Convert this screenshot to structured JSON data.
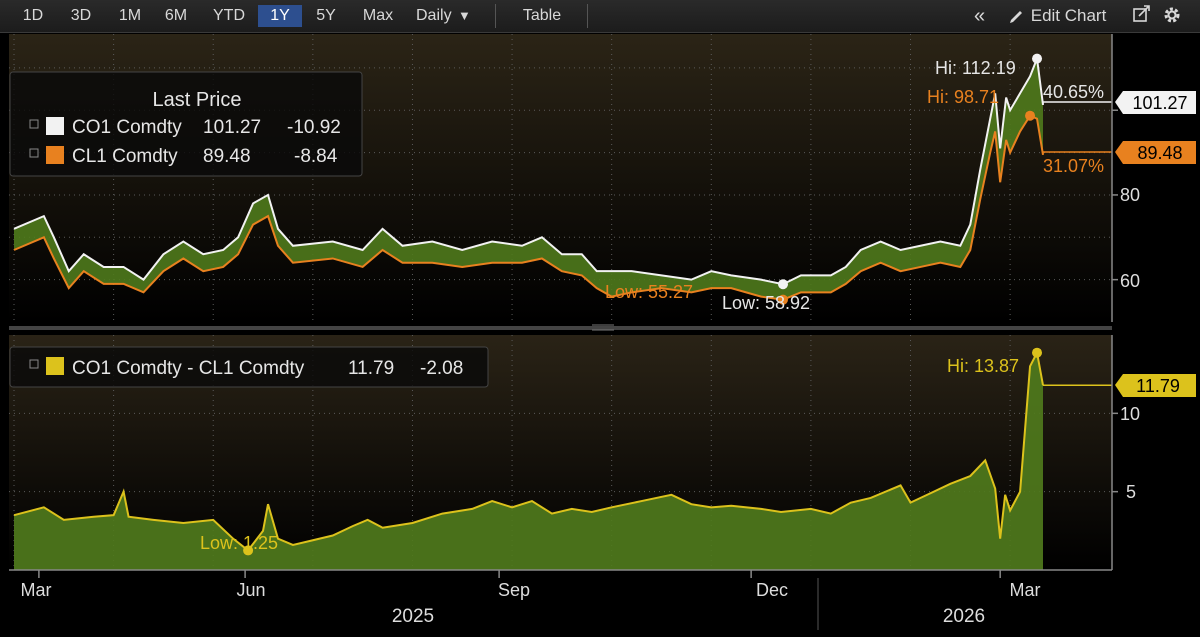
{
  "toolbar": {
    "ranges": [
      "1D",
      "3D",
      "1M",
      "6M",
      "YTD",
      "1Y",
      "5Y",
      "Max"
    ],
    "active_range": "1Y",
    "frequency": "Daily",
    "frequency_arrow": "▼",
    "table_label": "Table",
    "collapse_icon": "«",
    "edit_chart_label": "Edit Chart",
    "pencil_icon": "pencil-icon",
    "export_icon": "export-icon",
    "settings_icon": "gear-icon"
  },
  "colors": {
    "co1": "#f2f2f2",
    "cl1": "#e8811f",
    "spread": "#dcc21c",
    "fill": "#4f7a1c",
    "background": "#000000"
  },
  "chart_data": [
    {
      "type": "line",
      "title": "Last Price",
      "series": [
        {
          "name": "CO1 Comdty",
          "last": "101.27",
          "change": "-10.92",
          "hi_label": "Hi: 112.19",
          "pct_label": "40.65%",
          "values": [
            [
              0,
              72
            ],
            [
              0.03,
              75
            ],
            [
              0.04,
              70
            ],
            [
              0.055,
              62
            ],
            [
              0.07,
              66
            ],
            [
              0.09,
              63
            ],
            [
              0.11,
              63
            ],
            [
              0.13,
              60
            ],
            [
              0.15,
              66
            ],
            [
              0.17,
              69
            ],
            [
              0.19,
              66
            ],
            [
              0.21,
              67
            ],
            [
              0.225,
              70
            ],
            [
              0.24,
              78
            ],
            [
              0.255,
              80
            ],
            [
              0.265,
              72
            ],
            [
              0.28,
              68
            ],
            [
              0.32,
              69
            ],
            [
              0.35,
              67
            ],
            [
              0.37,
              72
            ],
            [
              0.39,
              68
            ],
            [
              0.42,
              69
            ],
            [
              0.45,
              67
            ],
            [
              0.48,
              69
            ],
            [
              0.51,
              68
            ],
            [
              0.53,
              70
            ],
            [
              0.55,
              66
            ],
            [
              0.57,
              66
            ],
            [
              0.585,
              62
            ],
            [
              0.62,
              62
            ],
            [
              0.65,
              61
            ],
            [
              0.68,
              60
            ],
            [
              0.7,
              62
            ],
            [
              0.72,
              61
            ],
            [
              0.75,
              60
            ],
            [
              0.772,
              58.92
            ],
            [
              0.79,
              61
            ],
            [
              0.82,
              61
            ],
            [
              0.835,
              63
            ],
            [
              0.85,
              67
            ],
            [
              0.87,
              69
            ],
            [
              0.89,
              67
            ],
            [
              0.91,
              68
            ],
            [
              0.93,
              69
            ],
            [
              0.95,
              68
            ],
            [
              0.96,
              73
            ],
            [
              0.97,
              86
            ],
            [
              0.98,
              98
            ],
            [
              0.985,
              104
            ],
            [
              0.99,
              91
            ],
            [
              0.996,
              103
            ],
            [
              1.0,
              100
            ],
            [
              1.01,
              104
            ],
            [
              1.02,
              108
            ],
            [
              1.027,
              112.19
            ],
            [
              1.033,
              101.27
            ]
          ]
        },
        {
          "name": "CL1 Comdty",
          "last": "89.48",
          "change": "-8.84",
          "hi_label": "Hi: 98.71",
          "pct_label": "31.07%",
          "values": [
            [
              0,
              67
            ],
            [
              0.03,
              70
            ],
            [
              0.04,
              65
            ],
            [
              0.055,
              58
            ],
            [
              0.07,
              62
            ],
            [
              0.09,
              59
            ],
            [
              0.11,
              59
            ],
            [
              0.13,
              57
            ],
            [
              0.15,
              62
            ],
            [
              0.17,
              65
            ],
            [
              0.19,
              62
            ],
            [
              0.21,
              63
            ],
            [
              0.225,
              66
            ],
            [
              0.24,
              73
            ],
            [
              0.255,
              75
            ],
            [
              0.265,
              68
            ],
            [
              0.28,
              64
            ],
            [
              0.32,
              65
            ],
            [
              0.35,
              63
            ],
            [
              0.37,
              67
            ],
            [
              0.39,
              64
            ],
            [
              0.42,
              64
            ],
            [
              0.45,
              63
            ],
            [
              0.48,
              64
            ],
            [
              0.51,
              64
            ],
            [
              0.53,
              65
            ],
            [
              0.55,
              62
            ],
            [
              0.57,
              61
            ],
            [
              0.585,
              58
            ],
            [
              0.6,
              56
            ],
            [
              0.62,
              57
            ],
            [
              0.65,
              58
            ],
            [
              0.68,
              57
            ],
            [
              0.7,
              58
            ],
            [
              0.72,
              58
            ],
            [
              0.75,
              56
            ],
            [
              0.772,
              55.27
            ],
            [
              0.79,
              57
            ],
            [
              0.82,
              57
            ],
            [
              0.835,
              59
            ],
            [
              0.85,
              62
            ],
            [
              0.87,
              64
            ],
            [
              0.89,
              62
            ],
            [
              0.91,
              63
            ],
            [
              0.93,
              64
            ],
            [
              0.95,
              63
            ],
            [
              0.96,
              67
            ],
            [
              0.97,
              79
            ],
            [
              0.98,
              90
            ],
            [
              0.985,
              95
            ],
            [
              0.99,
              83
            ],
            [
              0.996,
              93
            ],
            [
              1.0,
              90
            ],
            [
              1.01,
              95
            ],
            [
              1.02,
              98.71
            ],
            [
              1.027,
              98
            ],
            [
              1.033,
              89.48
            ]
          ]
        }
      ],
      "annotations": {
        "co1_low": "Low: 58.92",
        "cl1_low": "Low: 55.27"
      },
      "y_ticks": [
        "60",
        "80"
      ],
      "ylim": [
        50,
        118
      ]
    },
    {
      "type": "area",
      "series": [
        {
          "name": "CO1 Comdty - CL1 Comdty",
          "last": "11.79",
          "change": "-2.08",
          "hi_label": "Hi: 13.87",
          "low_label": "Low: 1.25",
          "values": [
            [
              0,
              3.5
            ],
            [
              0.03,
              4.0
            ],
            [
              0.05,
              3.2
            ],
            [
              0.08,
              3.4
            ],
            [
              0.1,
              3.5
            ],
            [
              0.11,
              5.0
            ],
            [
              0.115,
              3.4
            ],
            [
              0.14,
              3.2
            ],
            [
              0.17,
              3.0
            ],
            [
              0.2,
              3.2
            ],
            [
              0.22,
              2.0
            ],
            [
              0.235,
              1.25
            ],
            [
              0.25,
              2.5
            ],
            [
              0.255,
              4.2
            ],
            [
              0.265,
              2.0
            ],
            [
              0.28,
              1.6
            ],
            [
              0.3,
              1.9
            ],
            [
              0.32,
              2.2
            ],
            [
              0.34,
              2.8
            ],
            [
              0.355,
              3.2
            ],
            [
              0.37,
              2.7
            ],
            [
              0.4,
              3.0
            ],
            [
              0.43,
              3.6
            ],
            [
              0.46,
              3.9
            ],
            [
              0.48,
              4.4
            ],
            [
              0.5,
              4.0
            ],
            [
              0.52,
              4.4
            ],
            [
              0.54,
              3.6
            ],
            [
              0.56,
              3.9
            ],
            [
              0.58,
              3.7
            ],
            [
              0.6,
              4.0
            ],
            [
              0.63,
              4.4
            ],
            [
              0.66,
              4.8
            ],
            [
              0.68,
              4.2
            ],
            [
              0.7,
              4.0
            ],
            [
              0.72,
              4.1
            ],
            [
              0.75,
              3.9
            ],
            [
              0.77,
              3.7
            ],
            [
              0.8,
              3.9
            ],
            [
              0.82,
              3.6
            ],
            [
              0.84,
              4.3
            ],
            [
              0.86,
              4.6
            ],
            [
              0.89,
              5.4
            ],
            [
              0.9,
              4.3
            ],
            [
              0.92,
              4.9
            ],
            [
              0.94,
              5.5
            ],
            [
              0.96,
              6.0
            ],
            [
              0.975,
              7.0
            ],
            [
              0.985,
              5.2
            ],
            [
              0.99,
              2.0
            ],
            [
              0.995,
              4.8
            ],
            [
              1.0,
              3.8
            ],
            [
              1.01,
              5.0
            ],
            [
              1.015,
              9.0
            ],
            [
              1.02,
              13.0
            ],
            [
              1.027,
              13.87
            ],
            [
              1.033,
              11.79
            ]
          ]
        }
      ],
      "y_ticks": [
        "5",
        "10"
      ],
      "ylim": [
        0,
        15
      ]
    }
  ],
  "x_axis": {
    "months": [
      "Mar",
      "Jun",
      "Sep",
      "Dec",
      "Mar"
    ],
    "years": [
      "2025",
      "2026"
    ]
  }
}
